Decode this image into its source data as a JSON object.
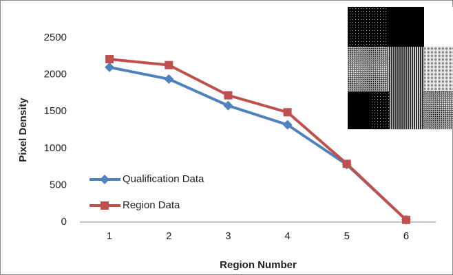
{
  "chart_data": {
    "type": "line",
    "x_label": "Region Number",
    "y_label": "Pixel Density",
    "categories": [
      "1",
      "2",
      "3",
      "4",
      "5",
      "6"
    ],
    "series": [
      {
        "name": "Qualification Data",
        "color": "#4f81bd",
        "marker": "diamond",
        "values": [
          2100,
          1940,
          1580,
          1320,
          780,
          30
        ]
      },
      {
        "name": "Region Data",
        "color": "#c0504d",
        "marker": "square",
        "values": [
          2210,
          2130,
          1720,
          1490,
          790,
          30
        ]
      }
    ],
    "ylim": [
      0,
      2500
    ],
    "yticks": [
      0,
      500,
      1000,
      1500,
      2000,
      2500
    ],
    "grid": false,
    "legend": "lower left"
  }
}
